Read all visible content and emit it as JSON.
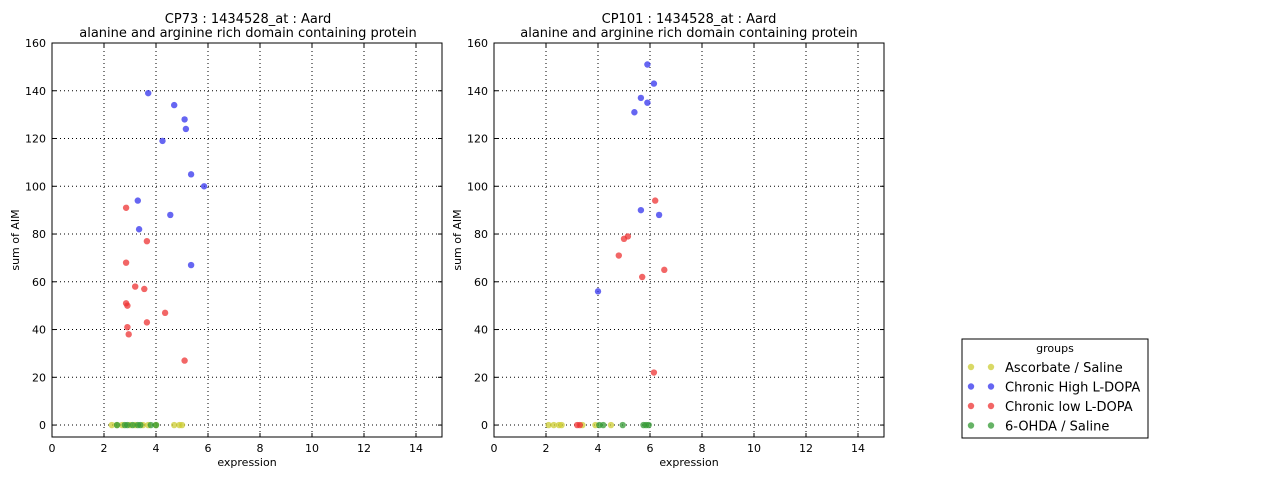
{
  "legend": {
    "title": "groups",
    "entries": [
      {
        "label": "Ascorbate / Saline",
        "color": "#cccc33"
      },
      {
        "label": "Chronic High L-DOPA",
        "color": "#3333ee"
      },
      {
        "label": "Chronic low L-DOPA",
        "color": "#ee3333"
      },
      {
        "label": "6-OHDA / Saline",
        "color": "#339933"
      }
    ],
    "placement": "right, lower"
  },
  "chart_data": [
    {
      "type": "scatter",
      "title": "CP73 : 1434528_at : Aard",
      "subtitle": "alanine and arginine rich domain containing protein",
      "xlabel": "expression",
      "ylabel": "sum of AIM",
      "xlim": [
        0,
        15
      ],
      "ylim": [
        -5,
        160
      ],
      "xticks": [
        0,
        2,
        4,
        6,
        8,
        10,
        12,
        14
      ],
      "yticks": [
        0,
        20,
        40,
        60,
        80,
        100,
        120,
        140,
        160
      ],
      "grid": true,
      "series": [
        {
          "name": "Ascorbate / Saline",
          "color": "#cccc33",
          "x": [
            2.3,
            2.5,
            2.7,
            3.0,
            3.2,
            3.5,
            3.7,
            4.0,
            4.7,
            4.9,
            5.0
          ],
          "y": [
            0,
            0,
            0,
            0,
            0,
            0,
            0,
            0,
            0,
            0,
            0
          ]
        },
        {
          "name": "Chronic High L-DOPA",
          "color": "#3333ee",
          "x": [
            3.7,
            4.7,
            5.1,
            5.15,
            4.25,
            5.35,
            5.85,
            3.3,
            4.55,
            3.35,
            5.35
          ],
          "y": [
            139,
            134,
            128,
            124,
            119,
            105,
            100,
            94,
            88,
            82,
            67
          ]
        },
        {
          "name": "Chronic low L-DOPA",
          "color": "#ee3333",
          "x": [
            2.85,
            3.65,
            2.85,
            3.2,
            3.55,
            2.85,
            2.9,
            4.35,
            3.65,
            2.9,
            2.95,
            5.1
          ],
          "y": [
            91,
            77,
            68,
            58,
            57,
            51,
            50,
            47,
            43,
            41,
            38,
            27
          ]
        },
        {
          "name": "6-OHDA / Saline",
          "color": "#339933",
          "x": [
            2.5,
            2.8,
            2.9,
            3.1,
            3.3,
            3.4,
            3.8,
            4.0
          ],
          "y": [
            0,
            0,
            0,
            0,
            0,
            0,
            0,
            0
          ]
        }
      ]
    },
    {
      "type": "scatter",
      "title": "CP101 : 1434528_at : Aard",
      "subtitle": "alanine and arginine rich domain containing protein",
      "xlabel": "expression",
      "ylabel": "sum of AIM",
      "xlim": [
        0,
        15
      ],
      "ylim": [
        -5,
        160
      ],
      "xticks": [
        0,
        2,
        4,
        6,
        8,
        10,
        12,
        14
      ],
      "yticks": [
        0,
        20,
        40,
        60,
        80,
        100,
        120,
        140,
        160
      ],
      "grid": true,
      "series": [
        {
          "name": "Ascorbate / Saline",
          "color": "#cccc33",
          "x": [
            2.1,
            2.3,
            2.5,
            2.6,
            3.4,
            3.9,
            4.5
          ],
          "y": [
            0,
            0,
            0,
            0,
            0,
            0,
            0
          ]
        },
        {
          "name": "Chronic High L-DOPA",
          "color": "#3333ee",
          "x": [
            5.9,
            6.15,
            5.65,
            5.9,
            5.4,
            5.65,
            6.35,
            4.0
          ],
          "y": [
            151,
            143,
            137,
            135,
            131,
            90,
            88,
            56
          ]
        },
        {
          "name": "Chronic low L-DOPA",
          "color": "#ee3333",
          "x": [
            6.2,
            5.0,
            5.15,
            4.8,
            5.7,
            6.55,
            6.15,
            3.2,
            3.3
          ],
          "y": [
            94,
            78,
            79,
            71,
            62,
            65,
            22,
            0,
            0
          ]
        },
        {
          "name": "6-OHDA / Saline",
          "color": "#339933",
          "x": [
            4.05,
            4.2,
            4.95,
            5.75,
            5.85,
            5.95
          ],
          "y": [
            0,
            0,
            0,
            0,
            0,
            0
          ]
        }
      ]
    }
  ]
}
